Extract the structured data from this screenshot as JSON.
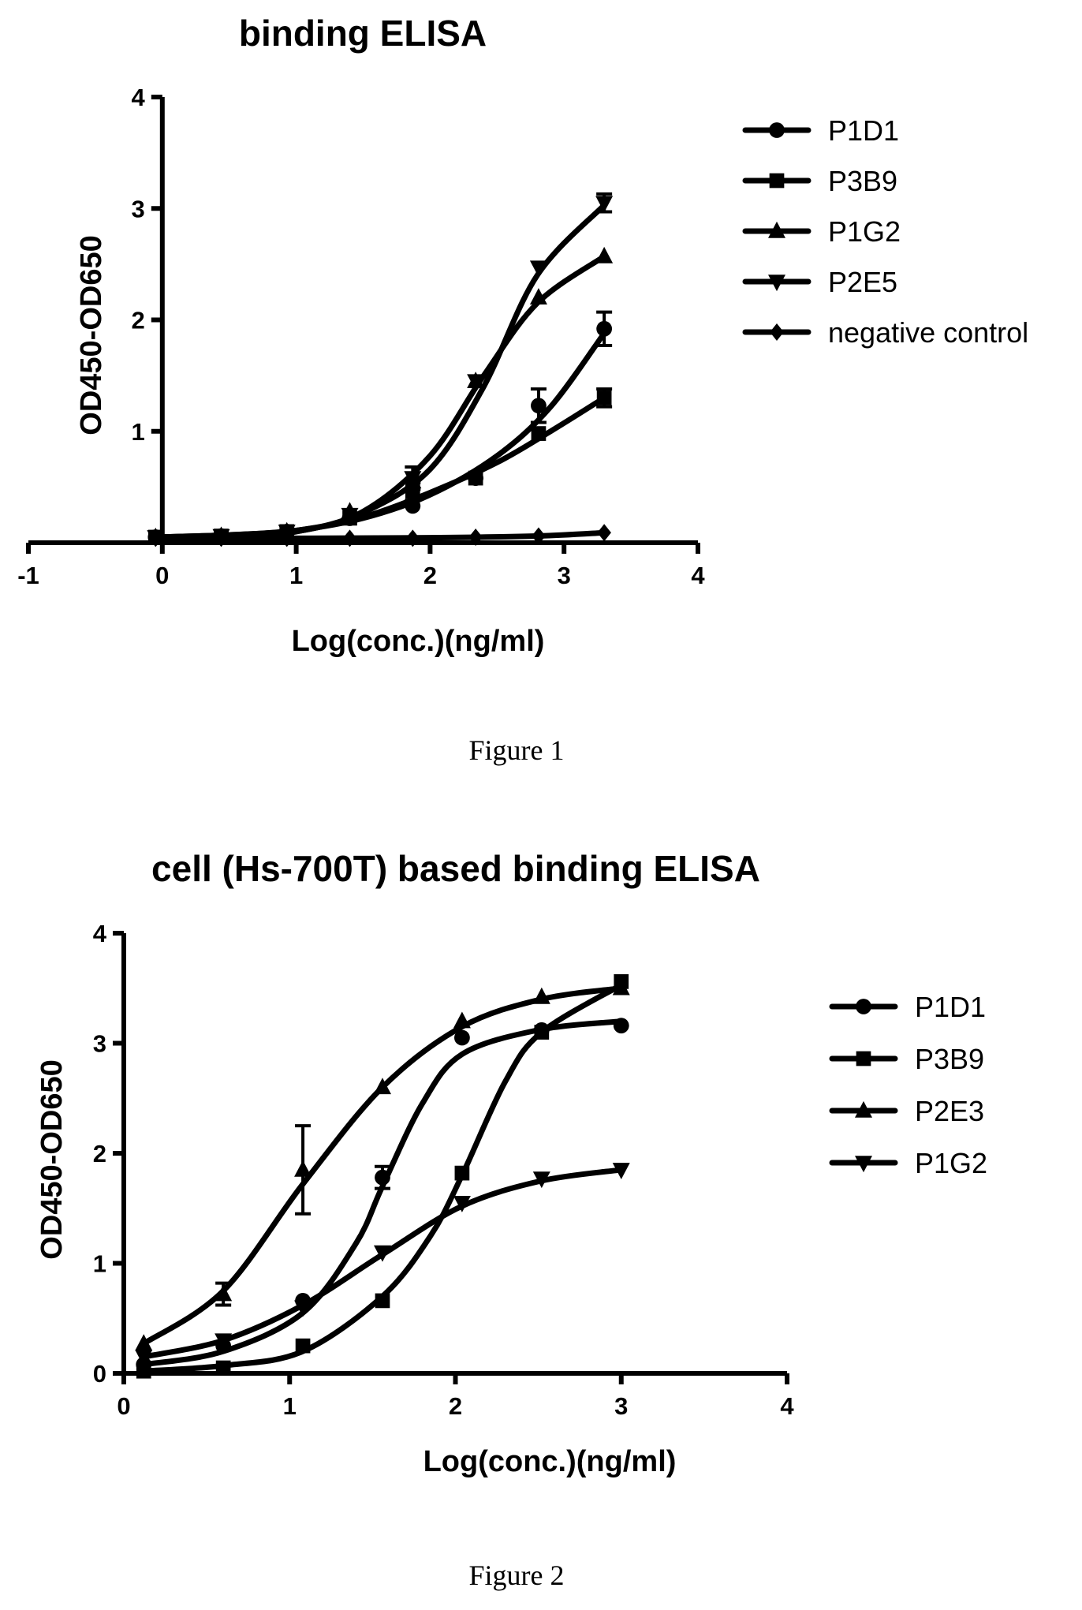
{
  "chart_data": [
    {
      "type": "line",
      "title": "binding ELISA",
      "xlabel": "Log(conc.)(ng/ml)",
      "ylabel": "OD450-OD650",
      "xlim": [
        -1,
        4
      ],
      "ylim": [
        0,
        4
      ],
      "xticks": [
        "-1",
        "0",
        "1",
        "2",
        "3",
        "4"
      ],
      "yticks": [
        "1",
        "2",
        "3",
        "4"
      ],
      "legend_position": "right",
      "caption": "Figure 1",
      "series": [
        {
          "name": "P1D1",
          "marker": "circle",
          "points": [
            [
              -0.05,
              0.05
            ],
            [
              0.44,
              0.06
            ],
            [
              0.93,
              0.1
            ],
            [
              1.4,
              0.22
            ],
            [
              1.87,
              0.33
            ],
            [
              2.34,
              0.58
            ],
            [
              2.81,
              1.23
            ],
            [
              3.3,
              1.92
            ]
          ],
          "curve": [
            [
              -0.05,
              0.05
            ],
            [
              0.5,
              0.07
            ],
            [
              1.0,
              0.11
            ],
            [
              1.5,
              0.22
            ],
            [
              2.0,
              0.43
            ],
            [
              2.5,
              0.78
            ],
            [
              2.9,
              1.22
            ],
            [
              3.3,
              1.88
            ]
          ],
          "errors": [
            [
              2.81,
              1.23,
              0.15
            ],
            [
              3.3,
              1.92,
              0.15
            ]
          ]
        },
        {
          "name": "P3B9",
          "marker": "square",
          "points": [
            [
              -0.05,
              0.05
            ],
            [
              0.44,
              0.06
            ],
            [
              0.93,
              0.1
            ],
            [
              1.4,
              0.22
            ],
            [
              1.87,
              0.46
            ],
            [
              2.34,
              0.58
            ],
            [
              2.81,
              0.98
            ],
            [
              3.3,
              1.3
            ]
          ],
          "curve": [
            [
              -0.05,
              0.05
            ],
            [
              0.5,
              0.07
            ],
            [
              1.0,
              0.11
            ],
            [
              1.5,
              0.23
            ],
            [
              2.0,
              0.45
            ],
            [
              2.5,
              0.72
            ],
            [
              2.9,
              1.0
            ],
            [
              3.3,
              1.3
            ]
          ],
          "errors": [
            [
              1.87,
              0.46,
              0.08
            ],
            [
              3.3,
              1.3,
              0.08
            ]
          ]
        },
        {
          "name": "P1G2",
          "marker": "triangle-up",
          "points": [
            [
              -0.05,
              0.05
            ],
            [
              0.44,
              0.06
            ],
            [
              0.93,
              0.1
            ],
            [
              1.4,
              0.28
            ],
            [
              1.87,
              0.55
            ],
            [
              2.34,
              1.45
            ],
            [
              2.81,
              2.2
            ],
            [
              3.3,
              2.57
            ]
          ],
          "curve": [
            [
              -0.05,
              0.05
            ],
            [
              0.5,
              0.06
            ],
            [
              1.0,
              0.1
            ],
            [
              1.5,
              0.28
            ],
            [
              2.0,
              0.78
            ],
            [
              2.4,
              1.5
            ],
            [
              2.8,
              2.15
            ],
            [
              3.3,
              2.57
            ]
          ],
          "errors": []
        },
        {
          "name": "P2E5",
          "marker": "triangle-down",
          "points": [
            [
              -0.05,
              0.05
            ],
            [
              0.44,
              0.06
            ],
            [
              0.93,
              0.1
            ],
            [
              1.4,
              0.25
            ],
            [
              1.87,
              0.58
            ],
            [
              2.34,
              1.45
            ],
            [
              2.81,
              2.47
            ],
            [
              3.3,
              3.05
            ]
          ],
          "curve": [
            [
              -0.05,
              0.05
            ],
            [
              0.5,
              0.06
            ],
            [
              1.0,
              0.1
            ],
            [
              1.5,
              0.27
            ],
            [
              2.0,
              0.66
            ],
            [
              2.4,
              1.4
            ],
            [
              2.8,
              2.4
            ],
            [
              3.3,
              3.03
            ]
          ],
          "errors": [
            [
              1.87,
              0.58,
              0.1
            ],
            [
              3.3,
              3.05,
              0.08
            ]
          ]
        },
        {
          "name": "negative control",
          "marker": "diamond",
          "points": [
            [
              -0.05,
              0.04
            ],
            [
              0.44,
              0.04
            ],
            [
              0.93,
              0.04
            ],
            [
              1.4,
              0.04
            ],
            [
              1.87,
              0.04
            ],
            [
              2.34,
              0.05
            ],
            [
              2.81,
              0.06
            ],
            [
              3.3,
              0.09
            ]
          ],
          "curve": [
            [
              -0.05,
              0.04
            ],
            [
              1.0,
              0.04
            ],
            [
              2.0,
              0.045
            ],
            [
              2.8,
              0.06
            ],
            [
              3.3,
              0.09
            ]
          ],
          "errors": []
        }
      ]
    },
    {
      "type": "line",
      "title": "cell (Hs-700T) based binding ELISA",
      "xlabel": "Log(conc.)(ng/ml)",
      "ylabel": "OD450-OD650",
      "xlim": [
        0,
        4
      ],
      "ylim": [
        0,
        4
      ],
      "xticks": [
        "0",
        "1",
        "2",
        "3",
        "4"
      ],
      "yticks": [
        "0",
        "1",
        "2",
        "3",
        "4"
      ],
      "legend_position": "right",
      "caption": "Figure 2",
      "series": [
        {
          "name": "P1D1",
          "marker": "circle",
          "points": [
            [
              0.12,
              0.08
            ],
            [
              0.6,
              0.25
            ],
            [
              1.08,
              0.66
            ],
            [
              1.56,
              1.78
            ],
            [
              2.04,
              3.05
            ],
            [
              2.52,
              3.12
            ],
            [
              3.0,
              3.16
            ]
          ],
          "curve": [
            [
              0.12,
              0.08
            ],
            [
              0.6,
              0.2
            ],
            [
              1.08,
              0.55
            ],
            [
              1.4,
              1.18
            ],
            [
              1.56,
              1.7
            ],
            [
              1.8,
              2.45
            ],
            [
              2.04,
              2.9
            ],
            [
              2.5,
              3.12
            ],
            [
              3.0,
              3.2
            ]
          ],
          "errors": [
            [
              1.56,
              1.78,
              0.1
            ]
          ]
        },
        {
          "name": "P3B9",
          "marker": "square",
          "points": [
            [
              0.12,
              0.02
            ],
            [
              0.6,
              0.05
            ],
            [
              1.08,
              0.25
            ],
            [
              1.56,
              0.66
            ],
            [
              2.04,
              1.82
            ],
            [
              2.52,
              3.1
            ],
            [
              3.0,
              3.56
            ]
          ],
          "curve": [
            [
              0.12,
              0.02
            ],
            [
              0.6,
              0.07
            ],
            [
              1.08,
              0.2
            ],
            [
              1.56,
              0.7
            ],
            [
              1.85,
              1.25
            ],
            [
              2.04,
              1.8
            ],
            [
              2.3,
              2.65
            ],
            [
              2.52,
              3.1
            ],
            [
              3.0,
              3.53
            ]
          ],
          "errors": []
        },
        {
          "name": "P2E3",
          "marker": "triangle-up",
          "points": [
            [
              0.12,
              0.27
            ],
            [
              0.6,
              0.72
            ],
            [
              1.08,
              1.85
            ],
            [
              1.56,
              2.6
            ],
            [
              2.04,
              3.2
            ],
            [
              2.52,
              3.42
            ],
            [
              3.0,
              3.5
            ]
          ],
          "curve": [
            [
              0.12,
              0.27
            ],
            [
              0.6,
              0.75
            ],
            [
              1.08,
              1.72
            ],
            [
              1.56,
              2.6
            ],
            [
              2.04,
              3.15
            ],
            [
              2.52,
              3.4
            ],
            [
              3.0,
              3.5
            ]
          ],
          "errors": [
            [
              0.6,
              0.72,
              0.1
            ],
            [
              1.08,
              1.85,
              0.4
            ]
          ]
        },
        {
          "name": "P1G2",
          "marker": "triangle-down",
          "points": [
            [
              0.12,
              0.15
            ],
            [
              0.6,
              0.3
            ],
            [
              1.08,
              0.6
            ],
            [
              1.56,
              1.1
            ],
            [
              2.04,
              1.55
            ],
            [
              2.52,
              1.77
            ],
            [
              3.0,
              1.85
            ]
          ],
          "curve": [
            [
              0.12,
              0.15
            ],
            [
              0.6,
              0.3
            ],
            [
              1.08,
              0.62
            ],
            [
              1.56,
              1.08
            ],
            [
              2.04,
              1.52
            ],
            [
              2.52,
              1.75
            ],
            [
              3.0,
              1.85
            ]
          ],
          "errors": []
        }
      ]
    }
  ]
}
